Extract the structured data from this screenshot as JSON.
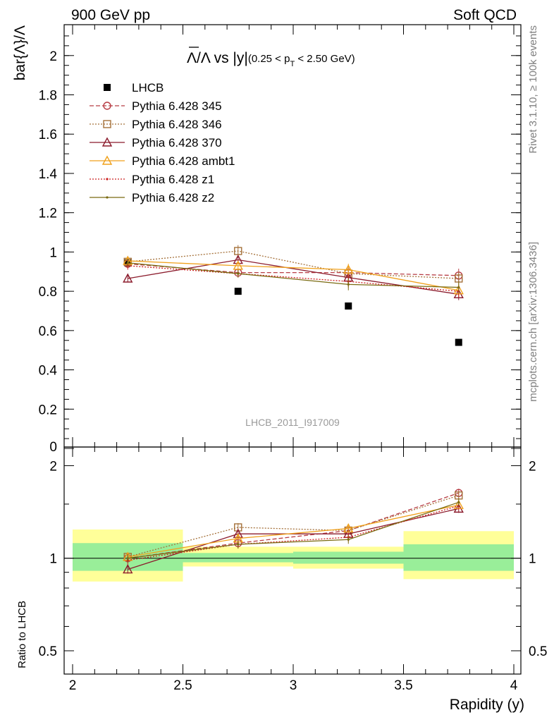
{
  "header": {
    "left": "900 GeV pp",
    "right": "Soft QCD"
  },
  "side": {
    "rivet": "Rivet 3.1.10, ≥ 100k events",
    "mcplots": "mcplots.cern.ch [arXiv:1306.3436]"
  },
  "watermark": "LHCB_2011_I917009",
  "chart_data": [
    {
      "type": "scatter",
      "panel": "main",
      "title": "Λ̅/Λ vs |y|(0.25 < p_T < 2.50 GeV)",
      "title_parts": {
        "a": "Λ",
        "b": "/Λ vs |y|",
        "c": "(0.25 < p",
        "d": "T",
        "e": " < 2.50 GeV)"
      },
      "ylabel": "bar{Λ}/Λ",
      "xlabel": "",
      "xlim": [
        2,
        4
      ],
      "ylim": [
        0,
        2.15
      ],
      "yticks": [
        "0",
        "0.2",
        "0.4",
        "0.6",
        "0.8",
        "1",
        "1.2",
        "1.4",
        "1.6",
        "1.8",
        "2"
      ],
      "x": [
        2.25,
        2.75,
        3.25,
        3.75
      ],
      "legend_position": "top-left",
      "series": [
        {
          "name": "LHCB",
          "values": [
            0.945,
            0.8,
            0.725,
            0.54
          ],
          "color": "#000000",
          "marker": "square",
          "line": "none"
        },
        {
          "name": "Pythia 6.428 345",
          "values": [
            0.94,
            0.895,
            0.895,
            0.88
          ],
          "errors": [
            0.02,
            0.02,
            0.03,
            0.035
          ],
          "color": "#b73d45",
          "marker": "circle",
          "line": "dashed"
        },
        {
          "name": "Pythia 6.428 346",
          "values": [
            0.95,
            1.005,
            0.89,
            0.865
          ],
          "errors": [
            0.02,
            0.03,
            0.03,
            0.035
          ],
          "color": "#a5713a",
          "marker": "open-square",
          "line": "dotted"
        },
        {
          "name": "Pythia 6.428 370",
          "values": [
            0.865,
            0.96,
            0.87,
            0.785
          ],
          "errors": [
            0.02,
            0.02,
            0.03,
            0.03
          ],
          "color": "#8b1b2c",
          "marker": "triangle",
          "line": "solid"
        },
        {
          "name": "Pythia 6.428 ambt1",
          "values": [
            0.955,
            0.93,
            0.91,
            0.805
          ],
          "errors": [
            0.02,
            0.02,
            0.03,
            0.03
          ],
          "color": "#f0a11c",
          "marker": "triangle",
          "line": "solid"
        },
        {
          "name": "Pythia 6.428 z1",
          "values": [
            0.93,
            0.89,
            0.85,
            0.8
          ],
          "errors": [
            0.02,
            0.02,
            0.03,
            0.03
          ],
          "color": "#cc2020",
          "marker": "dot",
          "line": "dotted"
        },
        {
          "name": "Pythia 6.428 z2",
          "values": [
            0.945,
            0.89,
            0.835,
            0.82
          ],
          "errors": [
            0.02,
            0.02,
            0.03,
            0.03
          ],
          "color": "#7a6b12",
          "marker": "dot",
          "line": "solid"
        }
      ]
    },
    {
      "type": "scatter",
      "panel": "ratio",
      "ylabel": "Ratio to LHCB",
      "xlabel": "Rapidity (y)",
      "xlim": [
        2,
        4
      ],
      "ylim": [
        0.42,
        2.3
      ],
      "log_y": true,
      "xticks": [
        "2",
        "2.5",
        "3",
        "3.5",
        "4"
      ],
      "yticks": [
        "0.5",
        "1",
        "2"
      ],
      "bands": [
        {
          "x0": 2.0,
          "x1": 2.5,
          "y1": [
            0.91,
            1.12
          ],
          "y2": [
            0.84,
            1.24
          ]
        },
        {
          "x0": 2.5,
          "x1": 3.0,
          "y1": [
            0.97,
            1.04
          ],
          "y2": [
            0.94,
            1.09
          ]
        },
        {
          "x0": 3.0,
          "x1": 3.5,
          "y1": [
            0.96,
            1.05
          ],
          "y2": [
            0.925,
            1.09
          ]
        },
        {
          "x0": 3.5,
          "x1": 4.0,
          "y1": [
            0.91,
            1.11
          ],
          "y2": [
            0.855,
            1.225
          ]
        }
      ],
      "x": [
        2.25,
        2.75,
        3.25,
        3.75
      ],
      "series": [
        {
          "name": "Pythia 6.428 345",
          "values": [
            1.0,
            1.12,
            1.23,
            1.63
          ],
          "color": "#b73d45"
        },
        {
          "name": "Pythia 6.428 346",
          "values": [
            1.01,
            1.26,
            1.23,
            1.6
          ],
          "color": "#a5713a"
        },
        {
          "name": "Pythia 6.428 370",
          "values": [
            0.92,
            1.2,
            1.2,
            1.45
          ],
          "color": "#8b1b2c"
        },
        {
          "name": "Pythia 6.428 ambt1",
          "values": [
            1.01,
            1.16,
            1.25,
            1.49
          ],
          "color": "#f0a11c"
        },
        {
          "name": "Pythia 6.428 z1",
          "values": [
            0.985,
            1.11,
            1.17,
            1.48
          ],
          "color": "#cc2020"
        },
        {
          "name": "Pythia 6.428 z2",
          "values": [
            1.0,
            1.11,
            1.15,
            1.52
          ],
          "color": "#7a6b12"
        }
      ]
    }
  ]
}
